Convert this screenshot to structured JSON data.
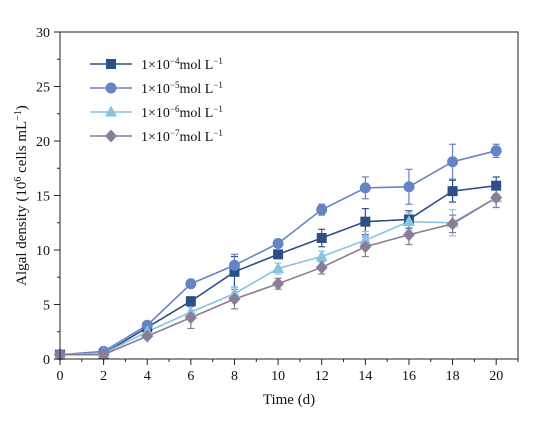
{
  "chart_data": {
    "type": "line",
    "xlabel": "Time (d)",
    "ylabel": {
      "main": "Algal density (10",
      "sup": "6",
      "rest": " cells mL",
      "sup2": "−1",
      "close": ")"
    },
    "xlim": [
      0,
      21
    ],
    "ylim": [
      0,
      30
    ],
    "x_ticks": [
      0,
      2,
      4,
      6,
      8,
      10,
      12,
      14,
      16,
      18,
      20
    ],
    "y_ticks": [
      0,
      5,
      10,
      15,
      20,
      25,
      30
    ],
    "x_tick_labels": [
      "0",
      "2",
      "4",
      "6",
      "8",
      "10",
      "12",
      "14",
      "16",
      "18",
      "20"
    ],
    "y_tick_labels": [
      "0",
      "5",
      "10",
      "15",
      "20",
      "25",
      "30"
    ],
    "grid": false,
    "legend_position": "top-left",
    "x": [
      0,
      2,
      4,
      6,
      8,
      10,
      12,
      14,
      16,
      18,
      20
    ],
    "series": [
      {
        "name": "1×10⁻⁴mol L⁻¹",
        "name_parts": {
          "base": "1×10",
          "exp": "−4",
          "unit": "mol L",
          "uexp": "−1"
        },
        "color": "#2e4f86",
        "marker": "square",
        "values": [
          0.4,
          0.5,
          2.9,
          5.3,
          8.0,
          9.6,
          11.1,
          12.6,
          12.8,
          15.4,
          15.9
        ],
        "errors": [
          0.1,
          0.1,
          0.3,
          0.4,
          1.4,
          0.3,
          0.8,
          1.2,
          0.8,
          1.0,
          0.8
        ]
      },
      {
        "name": "1×10⁻⁵mol L⁻¹",
        "name_parts": {
          "base": "1×10",
          "exp": "−5",
          "unit": "mol L",
          "uexp": "−1"
        },
        "color": "#6683c3",
        "marker": "circle",
        "values": [
          0.4,
          0.7,
          3.1,
          6.9,
          8.6,
          10.6,
          13.7,
          15.7,
          15.8,
          18.1,
          19.1
        ],
        "errors": [
          0.1,
          0.1,
          0.3,
          0.3,
          1.0,
          0.2,
          0.5,
          1.0,
          1.6,
          1.6,
          0.6
        ]
      },
      {
        "name": "1×10⁻⁶mol L⁻¹",
        "name_parts": {
          "base": "1×10",
          "exp": "−6",
          "unit": "mol L",
          "uexp": "−1"
        },
        "color": "#86c4e2",
        "marker": "triangle",
        "values": [
          0.4,
          0.5,
          2.5,
          4.3,
          6.0,
          8.3,
          9.4,
          10.9,
          12.6,
          12.5,
          14.8
        ],
        "errors": [
          0.1,
          0.1,
          0.3,
          0.5,
          0.6,
          0.5,
          0.5,
          0.8,
          0.8,
          1.2,
          0.9
        ]
      },
      {
        "name": "1×10⁻⁷mol L⁻¹",
        "name_parts": {
          "base": "1×10",
          "exp": "−7",
          "unit": "mol L",
          "uexp": "−1"
        },
        "color": "#8b7d96",
        "marker": "diamond",
        "values": [
          0.4,
          0.4,
          2.1,
          3.8,
          5.5,
          6.9,
          8.4,
          10.3,
          11.4,
          12.4,
          14.8
        ],
        "errors": [
          0.1,
          0.1,
          0.2,
          1.0,
          0.9,
          0.5,
          0.6,
          0.9,
          0.9,
          0.8,
          0.9
        ]
      }
    ]
  }
}
